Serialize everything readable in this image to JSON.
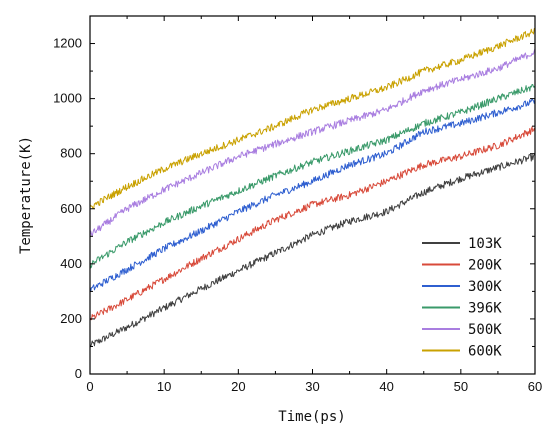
{
  "chart_data": {
    "type": "line",
    "title": "",
    "xlabel": "Time(ps)",
    "ylabel": "Temperature(K)",
    "xlim": [
      0,
      60
    ],
    "ylim": [
      0,
      1300
    ],
    "xticks": [
      0,
      10,
      20,
      30,
      40,
      50,
      60
    ],
    "yticks": [
      0,
      200,
      400,
      600,
      800,
      1000,
      1200
    ],
    "grid": false,
    "legend_position": "bottom-right",
    "series": [
      {
        "name": "103K",
        "color": "#404040",
        "x": [
          0,
          5,
          10,
          15,
          20,
          25,
          30,
          35,
          40,
          45,
          50,
          55,
          60
        ],
        "y": [
          103,
          170,
          240,
          310,
          375,
          440,
          505,
          555,
          590,
          660,
          710,
          750,
          790
        ]
      },
      {
        "name": "200K",
        "color": "#d84a3a",
        "x": [
          0,
          5,
          10,
          15,
          20,
          25,
          30,
          35,
          40,
          45,
          50,
          55,
          60
        ],
        "y": [
          200,
          270,
          345,
          420,
          490,
          560,
          615,
          650,
          700,
          760,
          790,
          830,
          890
        ]
      },
      {
        "name": "300K",
        "color": "#2f5fd0",
        "x": [
          0,
          5,
          10,
          15,
          20,
          25,
          30,
          35,
          40,
          45,
          50,
          55,
          60
        ],
        "y": [
          305,
          380,
          455,
          520,
          590,
          650,
          700,
          760,
          800,
          880,
          910,
          950,
          990
        ]
      },
      {
        "name": "396K",
        "color": "#3a9a6a",
        "x": [
          0,
          5,
          10,
          15,
          20,
          25,
          30,
          35,
          40,
          45,
          50,
          55,
          60
        ],
        "y": [
          396,
          480,
          550,
          610,
          665,
          720,
          770,
          810,
          850,
          910,
          950,
          1000,
          1045
        ]
      },
      {
        "name": "500K",
        "color": "#a97ee0",
        "x": [
          0,
          5,
          10,
          15,
          20,
          25,
          30,
          35,
          40,
          45,
          50,
          55,
          60
        ],
        "y": [
          505,
          600,
          670,
          730,
          790,
          835,
          880,
          920,
          960,
          1030,
          1070,
          1110,
          1170
        ]
      },
      {
        "name": "600K",
        "color": "#c9a100",
        "x": [
          0,
          5,
          10,
          15,
          20,
          25,
          30,
          35,
          40,
          45,
          50,
          55,
          60
        ],
        "y": [
          605,
          680,
          745,
          800,
          850,
          900,
          960,
          1000,
          1040,
          1100,
          1140,
          1190,
          1245
        ]
      }
    ]
  }
}
